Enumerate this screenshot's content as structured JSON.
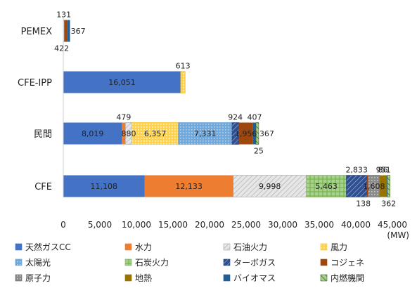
{
  "chart_data": {
    "type": "bar",
    "orientation": "horizontal",
    "stacked": true,
    "categories": [
      "PEMEX",
      "CFE-IPP",
      "民間",
      "CFE"
    ],
    "unit": "(MW)",
    "xlim": [
      0,
      45000
    ],
    "xticks": [
      "0",
      "5,000",
      "10,000",
      "15,000",
      "20,000",
      "25,000",
      "30,000",
      "35,000",
      "40,000",
      "45,000"
    ],
    "grid": false,
    "legend_position": "bottom",
    "series": [
      {
        "name": "天然ガスCC",
        "color": "#4472C4",
        "pattern": "solid",
        "values": [
          0,
          16051,
          8019,
          11108
        ]
      },
      {
        "name": "水力",
        "color": "#ED7D31",
        "pattern": "solid",
        "values": [
          0,
          0,
          479,
          12133
        ]
      },
      {
        "name": "石油火力",
        "color": "#A5A5A5",
        "pattern": "hatch",
        "values": [
          131,
          0,
          880,
          9998
        ]
      },
      {
        "name": "風力",
        "color": "#FFC000",
        "pattern": "dots",
        "values": [
          0,
          613,
          6357,
          0
        ]
      },
      {
        "name": "太陽光",
        "color": "#5B9BD5",
        "pattern": "dots",
        "values": [
          0,
          0,
          7331,
          0
        ]
      },
      {
        "name": "石炭火力",
        "color": "#70AD47",
        "pattern": "grid",
        "values": [
          0,
          0,
          0,
          5463
        ]
      },
      {
        "name": "ターボガス",
        "color": "#264478",
        "pattern": "stripes",
        "values": [
          0,
          0,
          924,
          2833
        ]
      },
      {
        "name": "コジェネ",
        "color": "#9E480E",
        "pattern": "solid",
        "values": [
          422,
          0,
          1956,
          138
        ]
      },
      {
        "name": "原子力",
        "color": "#636363",
        "pattern": "dots",
        "values": [
          0,
          0,
          0,
          1608
        ]
      },
      {
        "name": "地熱",
        "color": "#997300",
        "pattern": "solid",
        "values": [
          0,
          0,
          0,
          951
        ]
      },
      {
        "name": "バイオマス",
        "color": "#255E91",
        "pattern": "solid",
        "values": [
          367,
          0,
          407,
          86
        ]
      },
      {
        "name": "内燃機関",
        "color": "#43682B",
        "pattern": "stripes-rev",
        "values": [
          0,
          0,
          367,
          362
        ]
      }
    ],
    "labels": [
      {
        "cat": 0,
        "series": 2,
        "text": "131",
        "pos": "above"
      },
      {
        "cat": 0,
        "series": 7,
        "text": "422",
        "pos": "below-left"
      },
      {
        "cat": 0,
        "series": 10,
        "text": "367",
        "pos": "right"
      },
      {
        "cat": 1,
        "series": 0,
        "text": "16,051",
        "pos": "center"
      },
      {
        "cat": 1,
        "series": 3,
        "text": "613",
        "pos": "above"
      },
      {
        "cat": 2,
        "series": 0,
        "text": "8,019",
        "pos": "center"
      },
      {
        "cat": 2,
        "series": 1,
        "text": "479",
        "pos": "above"
      },
      {
        "cat": 2,
        "series": 2,
        "text": "880",
        "pos": "center"
      },
      {
        "cat": 2,
        "series": 3,
        "text": "6,357",
        "pos": "center"
      },
      {
        "cat": 2,
        "series": 4,
        "text": "7,331",
        "pos": "center"
      },
      {
        "cat": 2,
        "series": 6,
        "text": "924",
        "pos": "above"
      },
      {
        "cat": 2,
        "series": 7,
        "text": "1,956",
        "pos": "center"
      },
      {
        "cat": 2,
        "series": 10,
        "text": "407",
        "pos": "above"
      },
      {
        "cat": 2,
        "series": 11,
        "text": "367",
        "pos": "right"
      },
      {
        "cat": 2,
        "series": 12,
        "text": "25",
        "pos": "below"
      },
      {
        "cat": 3,
        "series": 0,
        "text": "11,108",
        "pos": "center"
      },
      {
        "cat": 3,
        "series": 1,
        "text": "12,133",
        "pos": "center"
      },
      {
        "cat": 3,
        "series": 2,
        "text": "9,998",
        "pos": "center"
      },
      {
        "cat": 3,
        "series": 5,
        "text": "5,463",
        "pos": "center"
      },
      {
        "cat": 3,
        "series": 10,
        "text": "86",
        "pos": "above-left"
      },
      {
        "cat": 3,
        "series": 7,
        "text": "138",
        "pos": "below-left"
      },
      {
        "cat": 3,
        "series": 6,
        "text": "2,833",
        "pos": "above"
      },
      {
        "cat": 3,
        "series": 8,
        "text": "1,608",
        "pos": "center"
      },
      {
        "cat": 3,
        "series": 9,
        "text": "951",
        "pos": "above"
      },
      {
        "cat": 3,
        "series": 11,
        "text": "362",
        "pos": "below"
      }
    ]
  }
}
